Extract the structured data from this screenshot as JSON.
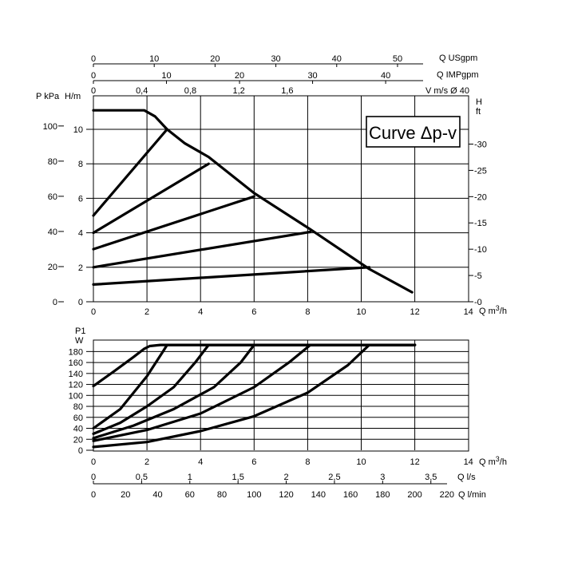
{
  "chart_data": [
    {
      "type": "line",
      "legend_text": "Curve Δp-v",
      "legend_placement": "top-right",
      "grid": true,
      "x_axis": {
        "label": "Q m³/h",
        "label_main": "Q m",
        "label_sup": "3",
        "label_tail": "/h",
        "range": [
          0,
          14
        ],
        "ticks": [
          "0",
          "2",
          "4",
          "6",
          "8",
          "10",
          "12",
          "14"
        ]
      },
      "y_axis_left": {
        "label_pressure": "P kPa",
        "label_head": "H/m",
        "range_head_m": [
          0,
          11.5
        ],
        "ticks_head_m": [
          "0",
          "2",
          "4",
          "6",
          "8",
          "10"
        ],
        "ticks_kpa": [
          "0",
          "20",
          "40",
          "60",
          "80",
          "100"
        ]
      },
      "y_axis_right": {
        "label_top": "H",
        "label_bottom": "ft",
        "ticks": [
          "0",
          "5",
          "10",
          "15",
          "20",
          "25",
          "30"
        ]
      },
      "top_axes": [
        {
          "label": "Q USgpm",
          "ticks": [
            "0",
            "10",
            "20",
            "30",
            "40",
            "50"
          ]
        },
        {
          "label": "Q IMPgpm",
          "ticks": [
            "0",
            "10",
            "20",
            "30",
            "40"
          ]
        },
        {
          "label": "V m/s Ø 40",
          "ticks": [
            "0",
            "0,4",
            "0,8",
            "1,2",
            "1,6"
          ]
        }
      ],
      "series": [
        {
          "x": [
            0,
            2.75
          ],
          "y": [
            5,
            10
          ]
        },
        {
          "x": [
            0,
            4.3
          ],
          "y": [
            4,
            8
          ]
        },
        {
          "x": [
            0,
            6
          ],
          "y": [
            3.05,
            6.1
          ]
        },
        {
          "x": [
            0,
            8.1
          ],
          "y": [
            2,
            4.05
          ]
        },
        {
          "x": [
            0,
            10.3
          ],
          "y": [
            1,
            2
          ]
        },
        {
          "x": [
            0,
            1.9,
            2.3,
            2.75,
            3.4,
            4.3,
            6,
            8.1,
            10.3,
            11.9
          ],
          "y": [
            11.1,
            11.1,
            10.75,
            10,
            9.2,
            8.4,
            6.3,
            4.2,
            1.9,
            0.55
          ]
        }
      ]
    },
    {
      "type": "line",
      "grid": true,
      "x_axis": {
        "label": "Q m³/h",
        "label_main": "Q m",
        "label_sup": "3",
        "label_tail": "/h",
        "range": [
          0,
          14
        ],
        "ticks": [
          "0",
          "2",
          "4",
          "6",
          "8",
          "10",
          "12",
          "14"
        ]
      },
      "y_axis_left": {
        "label_top": "P1",
        "label_unit": "W",
        "range": [
          0,
          195
        ],
        "ticks": [
          "0",
          "20",
          "40",
          "60",
          "80",
          "100",
          "120",
          "140",
          "160",
          "180"
        ]
      },
      "bottom_axes": [
        {
          "label": "Q l/s",
          "ticks": [
            "0",
            "0,5",
            "1",
            "1,5",
            "2",
            "2,5",
            "3",
            "3,5"
          ]
        },
        {
          "label": "Q l/min",
          "ticks": [
            "0",
            "20",
            "40",
            "60",
            "80",
            "100",
            "120",
            "140",
            "160",
            "180",
            "200",
            "220"
          ]
        }
      ],
      "series": [
        {
          "x": [
            0,
            0.8,
            1.5,
            1.9,
            2.1,
            2.5,
            12
          ],
          "y": [
            117,
            145,
            170,
            185,
            190,
            192,
            192
          ]
        },
        {
          "x": [
            0,
            1,
            2,
            2.6,
            2.75,
            12
          ],
          "y": [
            40,
            75,
            135,
            180,
            192,
            192
          ]
        },
        {
          "x": [
            0,
            1,
            2,
            3,
            3.8,
            4.3,
            12
          ],
          "y": [
            30,
            50,
            80,
            115,
            160,
            192,
            192
          ]
        },
        {
          "x": [
            0,
            1.5,
            3,
            4.5,
            5.5,
            6,
            12
          ],
          "y": [
            22,
            45,
            75,
            115,
            160,
            192,
            192
          ]
        },
        {
          "x": [
            0,
            2,
            4,
            6,
            7.3,
            8.1,
            12
          ],
          "y": [
            17,
            37,
            67,
            115,
            160,
            192,
            192
          ]
        },
        {
          "x": [
            0,
            2,
            4,
            6,
            8,
            9.5,
            10.3,
            12
          ],
          "y": [
            6,
            15,
            35,
            62,
            105,
            155,
            192,
            192
          ]
        }
      ]
    }
  ]
}
